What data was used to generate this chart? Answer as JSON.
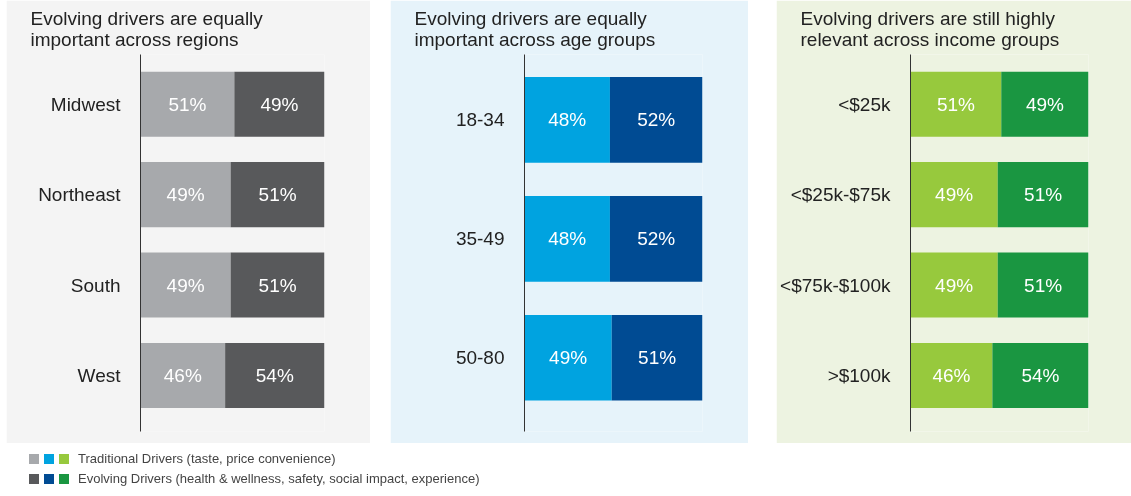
{
  "chart_data": [
    {
      "type": "bar",
      "orientation": "horizontal",
      "stacked": true,
      "title": "Evolving drivers are equally important across regions",
      "categories": [
        "Midwest",
        "Northeast",
        "South",
        "West"
      ],
      "series": [
        {
          "color": "#a7a9ac",
          "values": [
            51,
            49,
            49,
            46
          ],
          "value_labels": [
            "51%",
            "49%",
            "49%",
            "46%"
          ]
        },
        {
          "color": "#58595b",
          "values": [
            49,
            51,
            51,
            54
          ],
          "value_labels": [
            "49%",
            "51%",
            "51%",
            "54%"
          ]
        }
      ]
    },
    {
      "type": "bar",
      "orientation": "horizontal",
      "stacked": true,
      "title": "Evolving drivers are equally important across age groups",
      "categories": [
        "18-34",
        "35-49",
        "50-80"
      ],
      "series": [
        {
          "color": "#00a3e0",
          "values": [
            48,
            48,
            49
          ],
          "value_labels": [
            "48%",
            "48%",
            "49%"
          ]
        },
        {
          "color": "#004b93",
          "values": [
            52,
            52,
            51
          ],
          "value_labels": [
            "52%",
            "52%",
            "51%"
          ]
        }
      ]
    },
    {
      "type": "bar",
      "orientation": "horizontal",
      "stacked": true,
      "title": "Evolving drivers are still highly relevant across income groups",
      "categories": [
        "<$25k",
        "<$25k-$75k",
        "<$75k-$100k",
        ">$100k"
      ],
      "legend": "bottom",
      "series": [
        {
          "name": "Traditional Drivers (taste, price convenience)",
          "color": "#97c93d",
          "values": [
            51,
            49,
            49,
            46
          ],
          "value_labels": [
            "51%",
            "49%",
            "49%",
            "46%"
          ]
        },
        {
          "name": "Evolving Drivers (health & wellness, safety, social impact, experience)",
          "color": "#1a9641",
          "values": [
            49,
            51,
            51,
            54
          ],
          "value_labels": [
            "49%",
            "51%",
            "51%",
            "54%"
          ]
        }
      ]
    }
  ]
}
